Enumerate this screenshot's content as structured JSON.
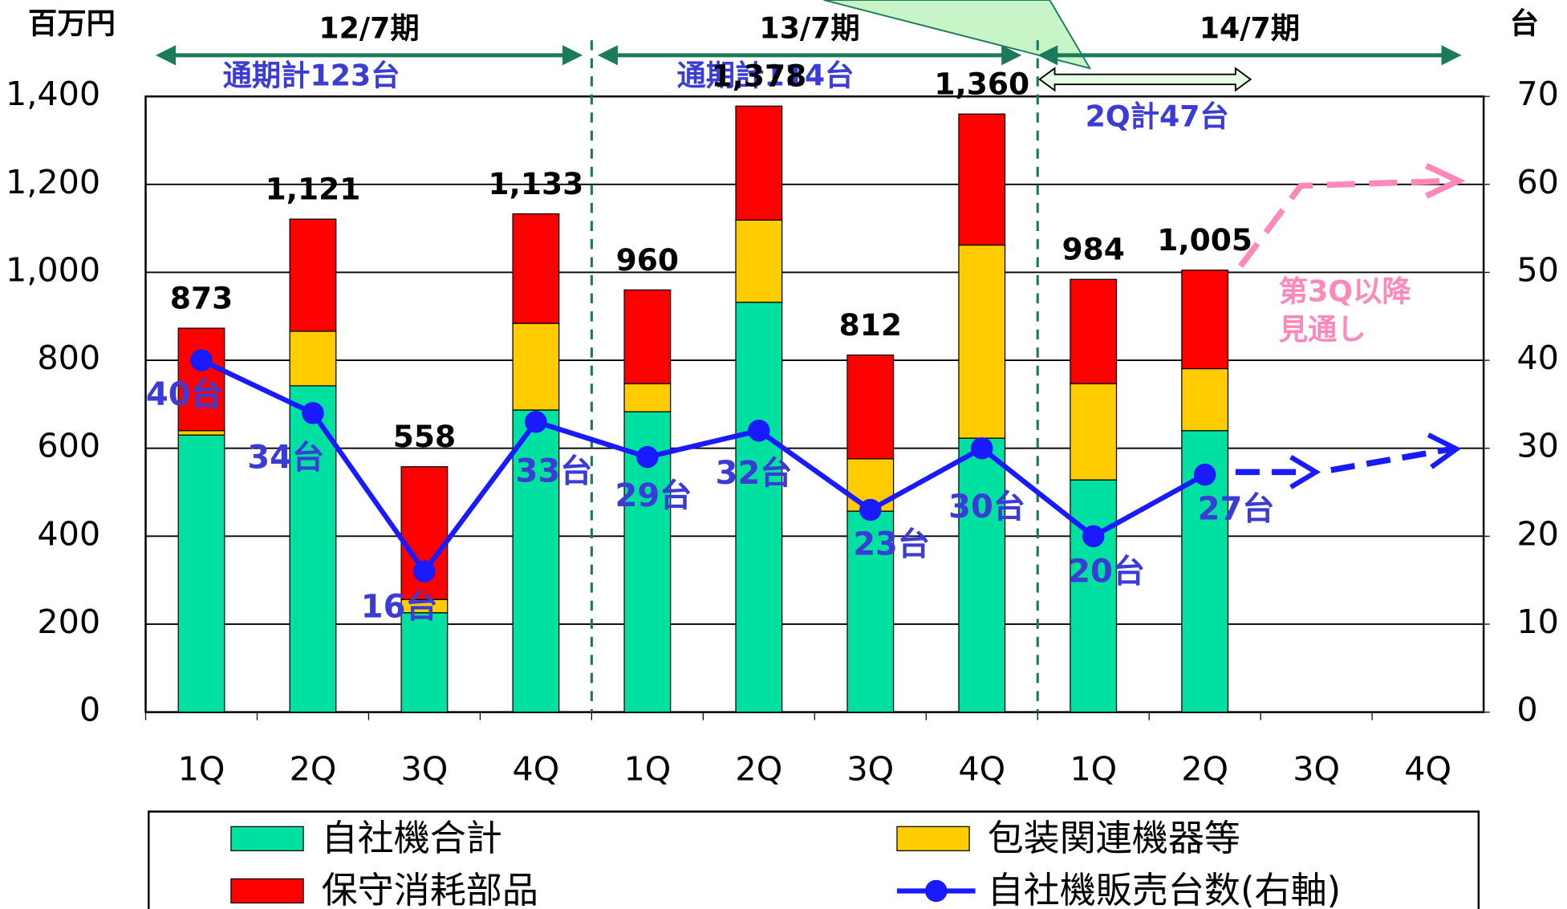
{
  "chart_data": {
    "type": "bar",
    "y_unit_label": "百万円",
    "y2_unit_label": "台",
    "categories": [
      "1Q",
      "2Q",
      "3Q",
      "4Q",
      "1Q",
      "2Q",
      "3Q",
      "4Q",
      "1Q",
      "2Q",
      "3Q",
      "4Q"
    ],
    "periods": [
      {
        "label": "12/7期",
        "summary": "通期計123台"
      },
      {
        "label": "13/7期",
        "summary": "通期計114台"
      },
      {
        "label": "14/7期",
        "summary": "2Q計47台"
      }
    ],
    "forecast_note": [
      "第3Q以降",
      "見通し"
    ],
    "ylim": [
      0,
      1400
    ],
    "yticks": [
      0,
      200,
      400,
      600,
      800,
      {
        "value": 1000,
        "label": "1,000"
      },
      {
        "value": 1200,
        "label": "1,200"
      },
      {
        "value": 1400,
        "label": "1,400"
      }
    ],
    "y2lim": [
      0,
      70
    ],
    "y2ticks": [
      0,
      10,
      20,
      30,
      40,
      50,
      60,
      70
    ],
    "grid": true,
    "series": [
      {
        "name": "自社機合計",
        "color": "#00e0a0",
        "values": [
          630,
          742,
          226,
          687,
          683,
          932,
          457,
          623,
          528,
          640,
          null,
          null
        ]
      },
      {
        "name": "包装関連機器等",
        "color": "#ffcc00",
        "values": [
          10,
          124,
          30,
          197,
          64,
          187,
          119,
          439,
          219,
          141,
          null,
          null
        ]
      },
      {
        "name": "保守消耗部品",
        "color": "#ff0000",
        "values": [
          233,
          255,
          302,
          249,
          213,
          259,
          236,
          298,
          237,
          224,
          null,
          null
        ]
      },
      {
        "name": "自社機販売台数(右軸)",
        "color": "#1a1aff",
        "type": "line",
        "axis": "y2",
        "values": [
          40,
          34,
          16,
          33,
          29,
          32,
          23,
          30,
          20,
          27,
          null,
          null
        ],
        "value_labels": [
          "40台",
          "34台",
          "16台",
          "33台",
          "29台",
          "32台",
          "23台",
          "30台",
          "20台",
          "27台",
          null,
          null
        ]
      }
    ],
    "totals": {
      "values": [
        873,
        1121,
        558,
        1133,
        960,
        1378,
        812,
        1360,
        984,
        1005,
        null,
        null
      ],
      "value_labels": [
        "873",
        "1,121",
        "558",
        "1,133",
        "960",
        "1,378",
        "812",
        "1,360",
        "984",
        "1,005",
        null,
        null
      ]
    }
  }
}
